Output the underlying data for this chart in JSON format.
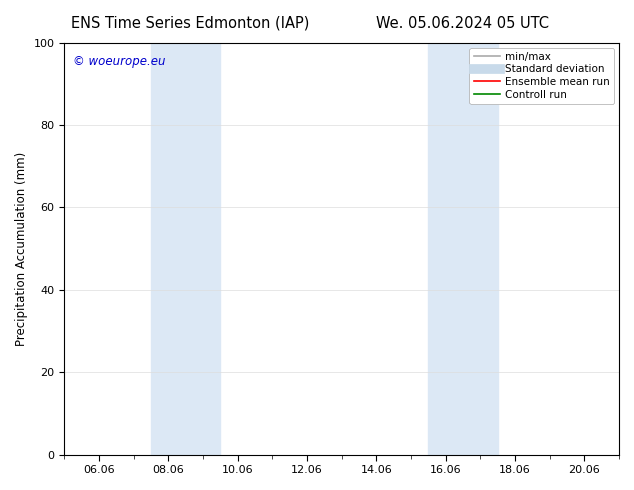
{
  "title_left": "ENS Time Series Edmonton (IAP)",
  "title_right": "We. 05.06.2024 05 UTC",
  "ylabel": "Precipitation Accumulation (mm)",
  "ylim": [
    0,
    100
  ],
  "yticks": [
    0,
    20,
    40,
    60,
    80,
    100
  ],
  "xtick_labels": [
    "06.06",
    "08.06",
    "10.06",
    "12.06",
    "14.06",
    "16.06",
    "18.06",
    "20.06"
  ],
  "xtick_positions": [
    2,
    4,
    6,
    8,
    10,
    12,
    14,
    16
  ],
  "xlim": [
    1,
    17
  ],
  "shaded_bands": [
    {
      "x_start": 3.5,
      "x_end": 5.5,
      "color": "#dce8f5"
    },
    {
      "x_start": 11.5,
      "x_end": 13.5,
      "color": "#dce8f5"
    }
  ],
  "watermark_text": "© woeurope.eu",
  "watermark_color": "#0000cc",
  "legend_entries": [
    {
      "label": "min/max",
      "color": "#aaaaaa",
      "lw": 1.2,
      "style": "solid"
    },
    {
      "label": "Standard deviation",
      "color": "#c8daea",
      "lw": 7,
      "style": "solid"
    },
    {
      "label": "Ensemble mean run",
      "color": "#ff0000",
      "lw": 1.2,
      "style": "solid"
    },
    {
      "label": "Controll run",
      "color": "#008800",
      "lw": 1.2,
      "style": "solid"
    }
  ],
  "bg_color": "#ffffff",
  "plot_bg_color": "#ffffff",
  "grid_color": "#dddddd",
  "border_color": "#000000",
  "title_fontsize": 10.5,
  "label_fontsize": 8.5,
  "tick_fontsize": 8,
  "legend_fontsize": 7.5
}
